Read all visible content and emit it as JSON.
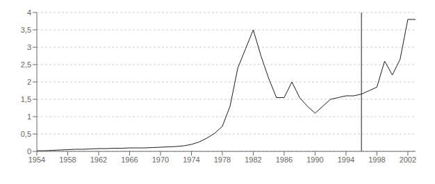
{
  "chart_data": {
    "type": "line",
    "x": [
      1954,
      1955,
      1956,
      1957,
      1958,
      1959,
      1960,
      1961,
      1962,
      1963,
      1964,
      1965,
      1966,
      1967,
      1968,
      1969,
      1970,
      1971,
      1972,
      1973,
      1974,
      1975,
      1976,
      1977,
      1978,
      1979,
      1980,
      1981,
      1982,
      1983,
      1984,
      1985,
      1986,
      1987,
      1988,
      1989,
      1990,
      1991,
      1992,
      1993,
      1994,
      1995,
      1996,
      1997,
      1998,
      1999,
      2000,
      2001,
      2002,
      2003
    ],
    "values": [
      0.02,
      0.02,
      0.03,
      0.04,
      0.05,
      0.06,
      0.06,
      0.07,
      0.08,
      0.08,
      0.09,
      0.09,
      0.1,
      0.1,
      0.1,
      0.11,
      0.12,
      0.13,
      0.14,
      0.16,
      0.2,
      0.27,
      0.38,
      0.52,
      0.72,
      1.3,
      2.4,
      2.95,
      3.5,
      2.75,
      2.1,
      1.55,
      1.55,
      2.0,
      1.55,
      1.3,
      1.1,
      1.3,
      1.5,
      1.55,
      1.6,
      1.6,
      1.65,
      1.75,
      1.85,
      2.6,
      2.2,
      2.65,
      3.8,
      3.8
    ],
    "color": "#1a1a1a",
    "vertical_line": 1996,
    "xlim": [
      1954,
      2003
    ],
    "ylim": [
      0,
      4
    ],
    "xticks": [
      1954,
      1958,
      1962,
      1966,
      1970,
      1974,
      1978,
      1982,
      1986,
      1990,
      1994,
      1998,
      2002
    ],
    "yticks": [
      0,
      {
        "value": 0.5,
        "label": "0,5"
      },
      1,
      {
        "value": 1.5,
        "label": "1,5"
      },
      2,
      {
        "value": 2.5,
        "label": "2,5"
      },
      3,
      {
        "value": 3.5,
        "label": "3,5"
      },
      4
    ],
    "grid": true
  }
}
